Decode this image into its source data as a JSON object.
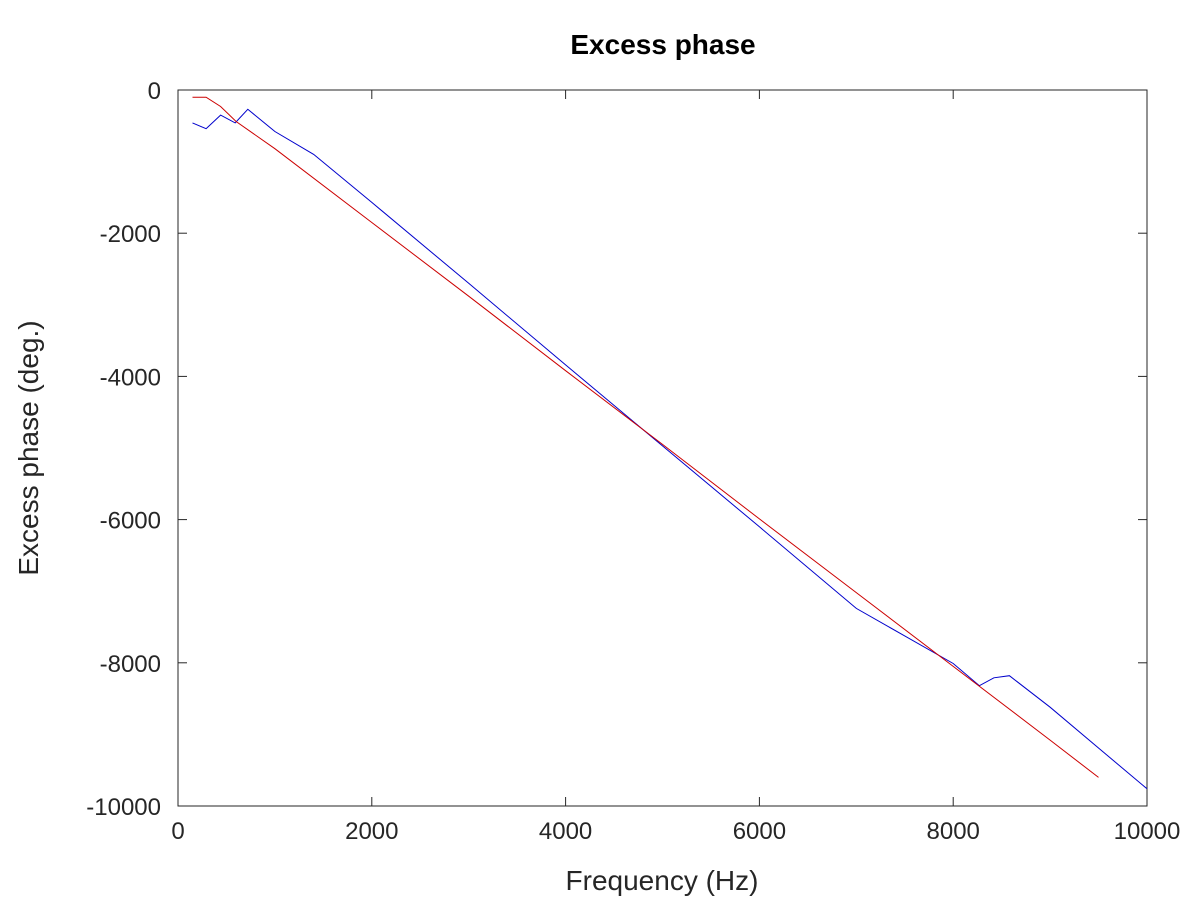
{
  "chart_data": {
    "type": "line",
    "title": "Excess phase",
    "xlabel": "Frequency (Hz)",
    "ylabel": "Excess phase (deg.)",
    "xlim": [
      0,
      10000
    ],
    "ylim": [
      -10000,
      0
    ],
    "xticks": [
      0,
      2000,
      4000,
      6000,
      8000,
      10000
    ],
    "yticks": [
      0,
      -2000,
      -4000,
      -6000,
      -8000,
      -10000
    ],
    "xtick_labels": [
      "0",
      "2000",
      "4000",
      "6000",
      "8000",
      "10000"
    ],
    "ytick_labels": [
      "0",
      "-2000",
      "-4000",
      "-6000",
      "-8000",
      "-10000"
    ],
    "grid": false,
    "series": [
      {
        "color": "#0000cc",
        "x": [
          150,
          290,
          440,
          590,
          720,
          1000,
          1400,
          2000,
          3000,
          4000,
          5000,
          6000,
          7000,
          8000,
          8270,
          8420,
          8580,
          9000,
          9500,
          10000
        ],
        "y": [
          -460,
          -540,
          -350,
          -460,
          -270,
          -580,
          -900,
          -1570,
          -2700,
          -3840,
          -4970,
          -6100,
          -7240,
          -8010,
          -8320,
          -8210,
          -8180,
          -8620,
          -9190,
          -9760
        ]
      },
      {
        "color": "#cc0000",
        "x": [
          150,
          290,
          440,
          600,
          1000,
          2000,
          3000,
          4000,
          5000,
          6000,
          7000,
          8000,
          9000,
          9500
        ],
        "y": [
          -100,
          -100,
          -230,
          -440,
          -820,
          -1850,
          -2880,
          -3920,
          -4950,
          -5990,
          -7020,
          -8050,
          -9080,
          -9600
        ]
      }
    ]
  }
}
